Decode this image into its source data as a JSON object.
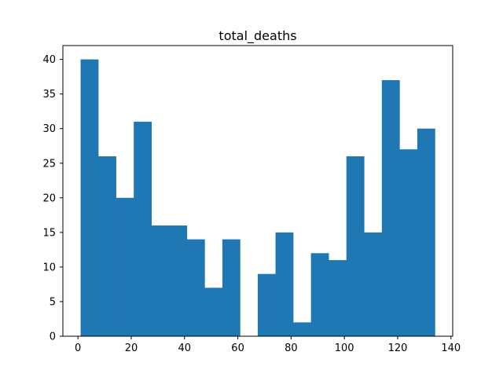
{
  "chart_data": {
    "type": "bar",
    "title": "total_deaths",
    "xlabel": "",
    "ylabel": "",
    "bar_color": "#1f77b4",
    "xlim": [
      -5.65,
      140.65
    ],
    "ylim": [
      0,
      42
    ],
    "xticks": [
      0,
      20,
      40,
      60,
      80,
      100,
      120,
      140
    ],
    "yticks": [
      0,
      5,
      10,
      15,
      20,
      25,
      30,
      35,
      40
    ],
    "bin_edges": [
      1,
      7.65,
      14.3,
      20.95,
      27.6,
      34.25,
      40.9,
      47.55,
      54.2,
      60.85,
      67.5,
      74.15,
      80.8,
      87.45,
      94.1,
      100.75,
      107.4,
      114.05,
      120.7,
      127.35,
      134
    ],
    "counts": [
      40,
      26,
      20,
      31,
      16,
      16,
      14,
      7,
      14,
      0,
      9,
      15,
      2,
      12,
      11,
      26,
      15,
      37,
      27,
      30
    ],
    "grid": false,
    "legend": "none"
  }
}
